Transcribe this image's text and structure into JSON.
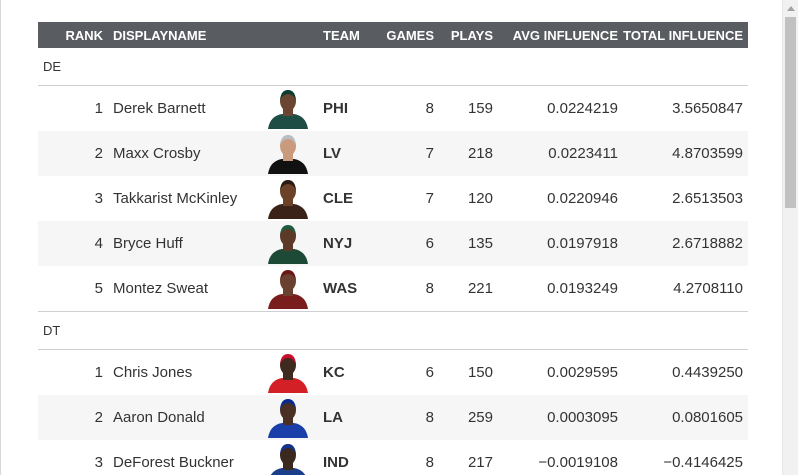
{
  "columns": {
    "rank": "RANK",
    "displayname": "DISPLAYNAME",
    "team": "TEAM",
    "games": "GAMES",
    "plays": "PLAYS",
    "avg_influence": "AVG INFLUENCE",
    "total_influence": "TOTAL INFLUENCE"
  },
  "groups": [
    {
      "label": "DE",
      "rows": [
        {
          "rank": "1",
          "name": "Derek Barnett",
          "team": "PHI",
          "games": "8",
          "plays": "159",
          "avg": "0.0224219",
          "total": "3.5650847",
          "jersey": "#1d4d44",
          "helmet": "#0b3b31",
          "skin": "#6a4532"
        },
        {
          "rank": "2",
          "name": "Maxx Crosby",
          "team": "LV",
          "games": "7",
          "plays": "218",
          "avg": "0.0223411",
          "total": "4.8703599",
          "jersey": "#111111",
          "helmet": "#b9bec2",
          "skin": "#c99a7b"
        },
        {
          "rank": "3",
          "name": "Takkarist McKinley",
          "team": "CLE",
          "games": "7",
          "plays": "120",
          "avg": "0.0220946",
          "total": "2.6513503",
          "jersey": "#3a2218",
          "helmet": "#2a1a12",
          "skin": "#6b4128"
        },
        {
          "rank": "4",
          "name": "Bryce Huff",
          "team": "NYJ",
          "games": "6",
          "plays": "135",
          "avg": "0.0197918",
          "total": "2.6718882",
          "jersey": "#1d4a36",
          "helmet": "#1d5c40",
          "skin": "#5b3a27"
        },
        {
          "rank": "5",
          "name": "Montez Sweat",
          "team": "WAS",
          "games": "8",
          "plays": "221",
          "avg": "0.0193249",
          "total": "4.2708110",
          "jersey": "#7a1d1d",
          "helmet": "#6a1717",
          "skin": "#6a4030"
        }
      ]
    },
    {
      "label": "DT",
      "rows": [
        {
          "rank": "1",
          "name": "Chris Jones",
          "team": "KC",
          "games": "6",
          "plays": "150",
          "avg": "0.0029595",
          "total": "0.4439250",
          "jersey": "#d32027",
          "helmet": "#c8102e",
          "skin": "#3e2a1f"
        },
        {
          "rank": "2",
          "name": "Aaron Donald",
          "team": "LA",
          "games": "8",
          "plays": "259",
          "avg": "0.0003095",
          "total": "0.0801605",
          "jersey": "#1a3fa8",
          "helmet": "#0a2a8c",
          "skin": "#4a3024"
        },
        {
          "rank": "3",
          "name": "DeForest Buckner",
          "team": "IND",
          "games": "8",
          "plays": "217",
          "avg": "−0.0019108",
          "total": "−0.4146425",
          "jersey": "#1b3f8a",
          "helmet": "#13318a",
          "skin": "#3b281e"
        }
      ]
    }
  ]
}
